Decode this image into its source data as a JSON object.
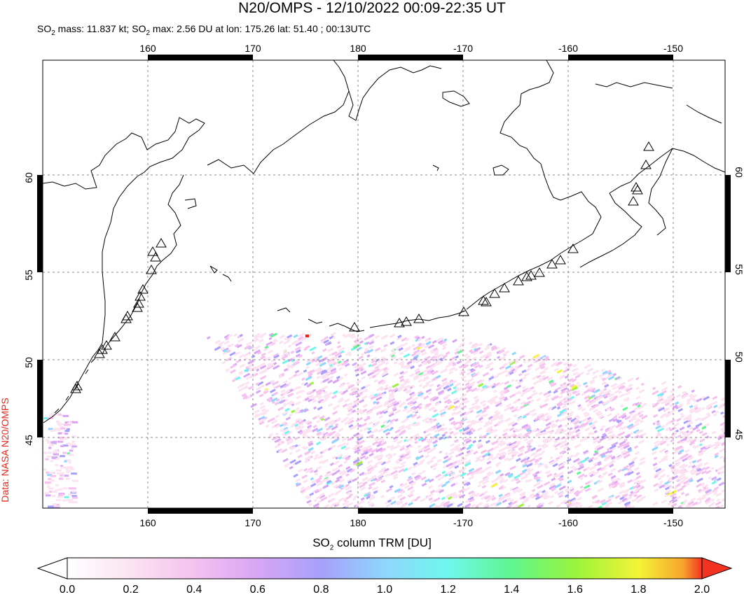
{
  "title": "N20/OMPS - 12/10/2022 00:09-22:35 UT",
  "subtitle": {
    "part1": "SO",
    "part1_sub": "2",
    "part2": " mass: 11.837 kt; SO",
    "part2_sub": "2",
    "part3": " max: 2.56 DU at lon: 175.26 lat: 51.40 ; 00:13UTC"
  },
  "source_label": "Data: NASA N20/OMPS",
  "colorbar": {
    "label_pre": "SO",
    "label_sub": "2",
    "label_post": " column TRM [DU]",
    "ticks": [
      "0.0",
      "0.2",
      "0.4",
      "0.6",
      "0.8",
      "1.0",
      "1.2",
      "1.4",
      "1.6",
      "1.8",
      "2.0"
    ],
    "colors": [
      "#ffffff",
      "#fbe3f1",
      "#f5c2ef",
      "#d7a6f5",
      "#a7a0fb",
      "#8fd6fc",
      "#6ff7ed",
      "#5ef68f",
      "#9af43c",
      "#f4f437",
      "#f6a52c",
      "#f33322"
    ]
  },
  "map": {
    "lon_labels": [
      "160",
      "170",
      "180",
      "-170",
      "-160",
      "-150"
    ],
    "lat_labels": [
      "60",
      "55",
      "50",
      "45"
    ],
    "volcano_markers": "triangle-icon",
    "colors": {
      "coast": "#000000",
      "grid": "#888888",
      "max_marker": "#e8281c"
    }
  }
}
